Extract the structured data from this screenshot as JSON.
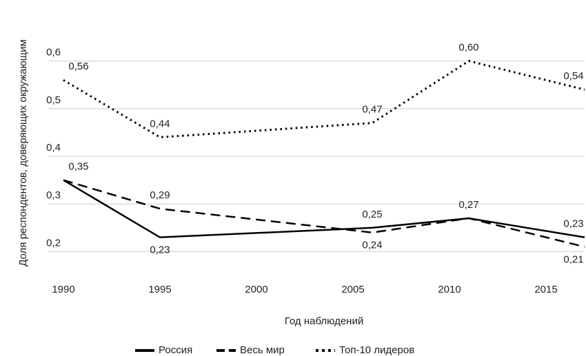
{
  "chart_data": {
    "type": "line",
    "x_label": "Год наблюдений",
    "y_label": "Доля респондентов, доверяющих окружающим",
    "x": [
      1990,
      1995,
      2006,
      2011,
      2017
    ],
    "series": [
      {
        "name": "Россия",
        "color": "#000000",
        "style": "solid",
        "values": [
          0.35,
          0.23,
          0.25,
          0.27,
          0.23
        ],
        "value_labels": [
          "0,35",
          "0,23",
          "0,25",
          "0,27",
          "0,23"
        ]
      },
      {
        "name": "Весь мир",
        "color": "#000000",
        "style": "dashed",
        "values": [
          0.35,
          0.29,
          0.24,
          0.27,
          0.21
        ],
        "value_labels": [
          null,
          "0,29",
          "0,24",
          null,
          "0,21"
        ]
      },
      {
        "name": "Топ-10 лидеров",
        "color": "#000000",
        "style": "dotted",
        "values": [
          0.56,
          0.44,
          0.47,
          0.6,
          0.54
        ],
        "value_labels": [
          "0,56",
          "0,44",
          "0,47",
          "0,60",
          "0,54"
        ]
      }
    ],
    "xlim": [
      1990,
      2017
    ],
    "xticks": [
      1990,
      1995,
      2000,
      2005,
      2010,
      2015
    ],
    "ylim": [
      0.15,
      0.65
    ],
    "yticks": [
      {
        "value": 0.2,
        "label": "0,2"
      },
      {
        "value": 0.3,
        "label": "0,3"
      },
      {
        "value": 0.4,
        "label": "0,4"
      },
      {
        "value": 0.5,
        "label": "0,5"
      },
      {
        "value": 0.6,
        "label": "0,6"
      }
    ],
    "grid": true,
    "legend": "bottom"
  }
}
